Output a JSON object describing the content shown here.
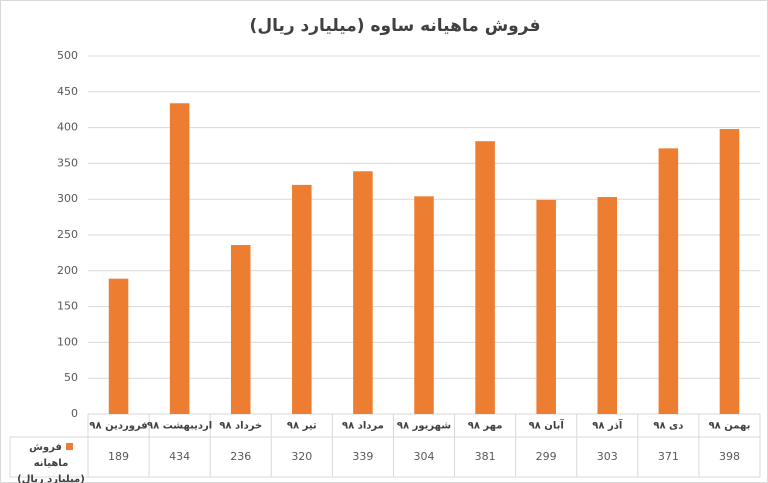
{
  "chart_data": {
    "type": "bar",
    "title": "فروش ماهیانه ساوه (میلیارد ریال)",
    "categories": [
      "فروردین ۹۸",
      "اردیبهشت ۹۸",
      "خرداد ۹۸",
      "تیر ۹۸",
      "مرداد ۹۸",
      "شهریور ۹۸",
      "مهر ۹۸",
      "آبان ۹۸",
      "آذر ۹۸",
      "دی ۹۸",
      "بهمن ۹۸"
    ],
    "series": [
      {
        "name": "فروش ماهیانه (میلیارد ریال)",
        "color": "#ed7d31",
        "values": [
          189,
          434,
          236,
          320,
          339,
          304,
          381,
          299,
          303,
          371,
          398
        ]
      }
    ],
    "ylim": [
      0,
      500
    ],
    "yticks": [
      0,
      50,
      100,
      150,
      200,
      250,
      300,
      350,
      400,
      450,
      500
    ],
    "grid": true
  }
}
